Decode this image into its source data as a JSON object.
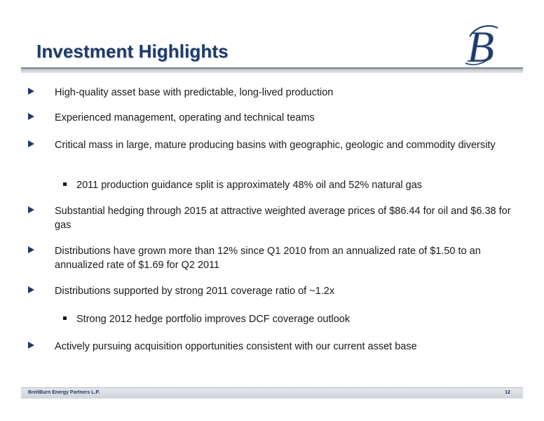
{
  "slide": {
    "title": "Investment Highlights",
    "logo_letter": "B",
    "colors": {
      "title": "#1f3a68",
      "bullet_arrow": "#1f3a68",
      "text": "#1a1a1a"
    }
  },
  "bullets": [
    {
      "text": "High-quality asset base with predictable, long-lived production"
    },
    {
      "text": "Experienced management, operating and technical teams"
    },
    {
      "text": "Critical mass in large, mature producing basins with geographic, geologic and commodity diversity"
    },
    {
      "text": "2011 production guidance split is approximately 48% oil and 52% natural gas"
    },
    {
      "text": "Substantial hedging through 2015 at attractive weighted average prices of $86.44 for oil and $6.38 for gas"
    },
    {
      "text": "Distributions have grown more than 12% since Q1 2010 from an annualized rate of $1.50 to an annualized rate of $1.69 for Q2 2011"
    },
    {
      "text": "Distributions supported by strong 2011 coverage ratio of ~1.2x"
    },
    {
      "text": "Strong 2012 hedge portfolio improves DCF coverage outlook"
    },
    {
      "text": "Actively pursuing acquisition opportunities consistent with our current asset base"
    }
  ],
  "footer": {
    "company": "BreitBurn Energy Partners L.P.",
    "page_number": "12"
  }
}
